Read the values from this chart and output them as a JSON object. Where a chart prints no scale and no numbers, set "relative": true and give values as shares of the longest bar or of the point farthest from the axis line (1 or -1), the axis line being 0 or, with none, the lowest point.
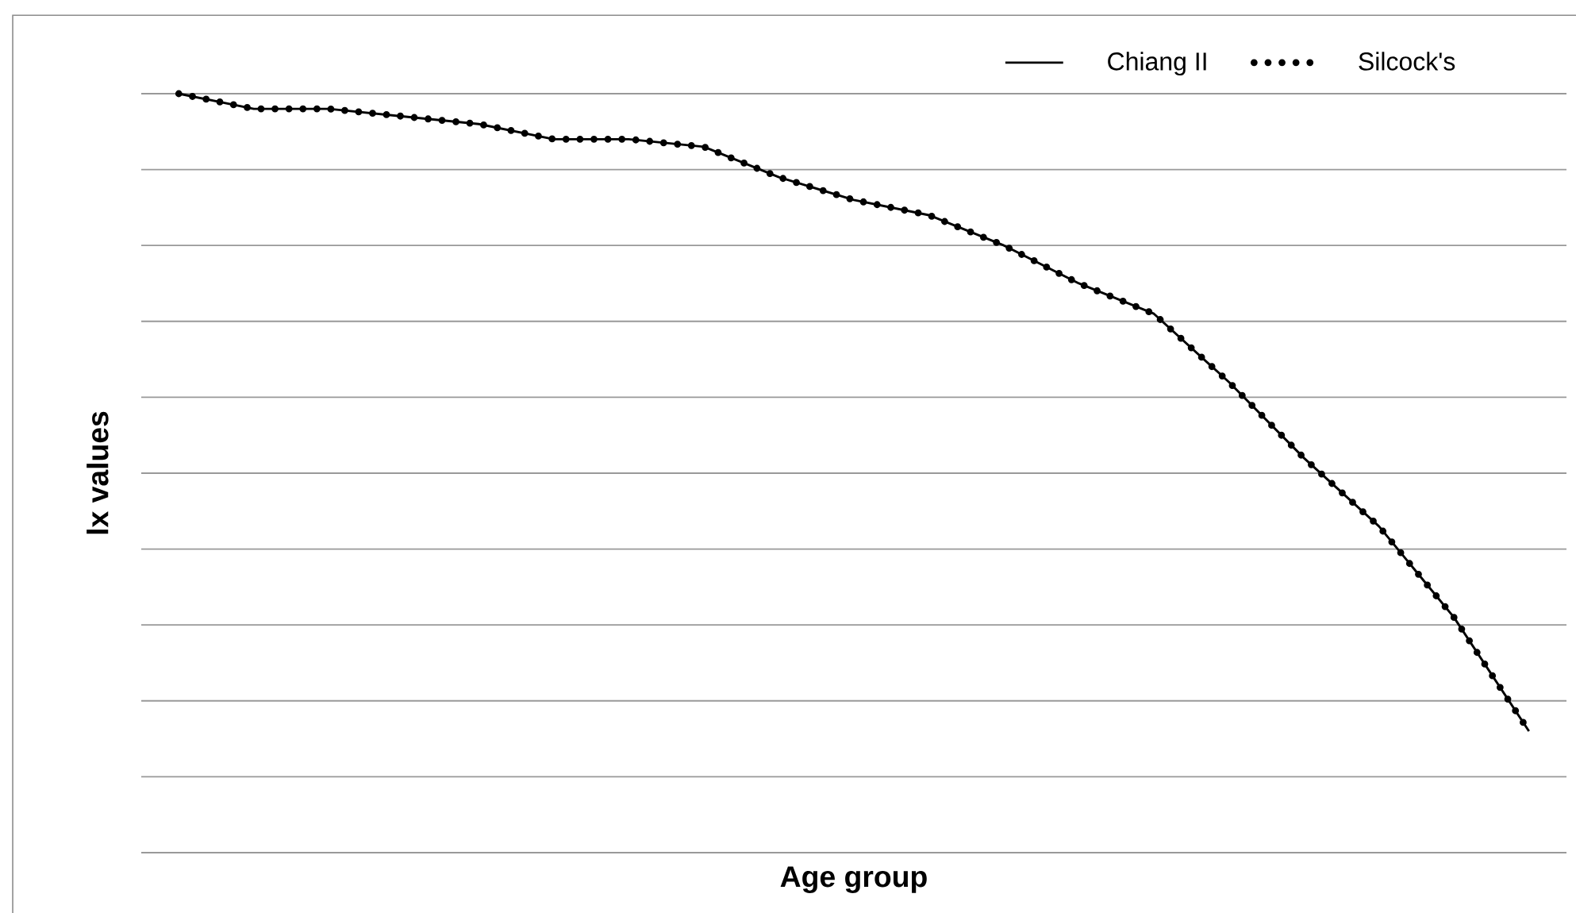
{
  "chart_data": {
    "type": "line",
    "relative": true,
    "xlabel": "Age group",
    "ylabel": "lx values",
    "categories": [
      null,
      null,
      null,
      null,
      null,
      null,
      null,
      null,
      null,
      null,
      null,
      null,
      null,
      null,
      null,
      null,
      null,
      null,
      null
    ],
    "series": [
      {
        "name": "Chiang II",
        "color": "#000000",
        "line_style": "solid",
        "values": [
          1.0,
          0.98,
          0.98,
          0.97,
          0.96,
          0.94,
          0.94,
          0.93,
          0.89,
          0.86,
          0.84,
          0.8,
          0.75,
          0.71,
          0.62,
          0.52,
          0.43,
          0.31,
          0.16
        ]
      },
      {
        "name": "Silcock's",
        "color": "#000000",
        "line_style": "dotted",
        "values": [
          1.0,
          0.98,
          0.98,
          0.97,
          0.96,
          0.94,
          0.94,
          0.93,
          0.89,
          0.86,
          0.84,
          0.8,
          0.75,
          0.71,
          0.62,
          0.52,
          0.43,
          0.31,
          0.16
        ]
      }
    ],
    "grid": "y",
    "legend": "top right",
    "marker": "none"
  }
}
